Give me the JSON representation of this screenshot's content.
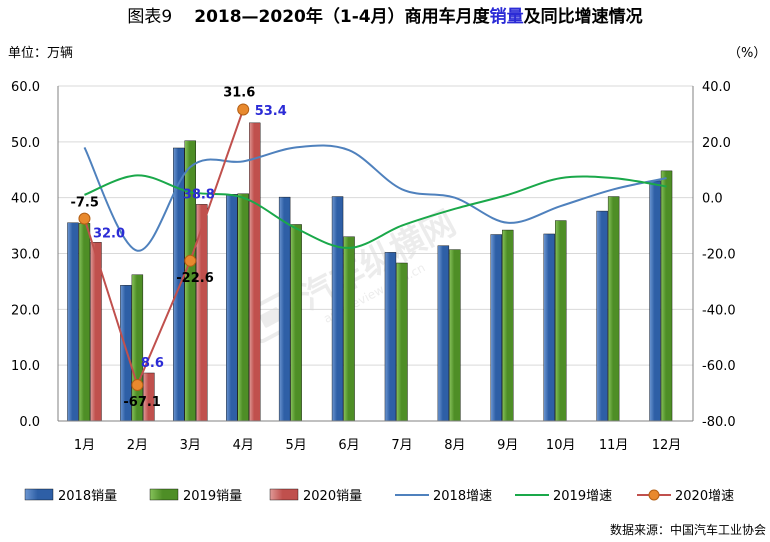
{
  "title": {
    "prefix": "图表9",
    "main_a": "2018—2020年（1-4月）商用车月度",
    "main_highlight": "销量",
    "main_b": "及同比增速情况"
  },
  "left_unit": "单位：万辆",
  "right_unit": "（%）",
  "source": "数据来源：中国汽车工业协会",
  "colors": {
    "s2018_bar": "#2e5fa6",
    "s2019_bar": "#4e8e26",
    "s2020_bar": "#c0504d",
    "g2018_line": "#4f81bd",
    "g2019_line": "#1aa84a",
    "g2020_line": "#c0504d",
    "g2020_marker": "#e8892e",
    "label_blue": "#2b2bd6",
    "axis": "#808080"
  },
  "chart_data": {
    "type": "bar",
    "categories": [
      "1月",
      "2月",
      "3月",
      "4月",
      "5月",
      "6月",
      "7月",
      "8月",
      "9月",
      "10月",
      "11月",
      "12月"
    ],
    "y_left": {
      "min": 0,
      "max": 60,
      "ticks": [
        "0.0",
        "10.0",
        "20.0",
        "30.0",
        "40.0",
        "50.0",
        "60.0"
      ]
    },
    "y_right": {
      "min": -80,
      "max": 40,
      "ticks": [
        "-80.0",
        "-60.0",
        "-40.0",
        "-20.0",
        "0.0",
        "20.0",
        "40.0"
      ]
    },
    "bar_series": [
      {
        "name": "2018销量",
        "values": [
          35.5,
          24.3,
          48.9,
          40.6,
          40.1,
          40.2,
          30.2,
          31.4,
          33.4,
          33.5,
          37.6,
          43.0
        ]
      },
      {
        "name": "2019销量",
        "values": [
          35.4,
          26.2,
          50.2,
          40.7,
          35.2,
          33.0,
          28.3,
          30.7,
          34.2,
          35.9,
          40.2,
          44.8
        ]
      },
      {
        "name": "2020销量",
        "values": [
          32.0,
          8.6,
          38.8,
          53.4
        ]
      }
    ],
    "line_series": [
      {
        "name": "2018增速",
        "values": [
          18,
          -19,
          11,
          13,
          18,
          17,
          3,
          0,
          -9,
          -3,
          3,
          7
        ]
      },
      {
        "name": "2019增速",
        "values": [
          1,
          8,
          2,
          0,
          -11,
          -18,
          -10,
          -4,
          1,
          7,
          7,
          4
        ]
      },
      {
        "name": "2020增速",
        "values": [
          -7.5,
          -67.1,
          -22.6,
          31.6
        ]
      }
    ],
    "data_labels": {
      "bar_2020": [
        "32.0",
        "8.6",
        "38.8",
        "53.4"
      ],
      "growth_2020": [
        "-7.5",
        "-67.1",
        "-22.6",
        "31.6"
      ]
    },
    "watermark": {
      "brand": "汽车纵横网",
      "url": "autoreview.com.cn"
    }
  }
}
